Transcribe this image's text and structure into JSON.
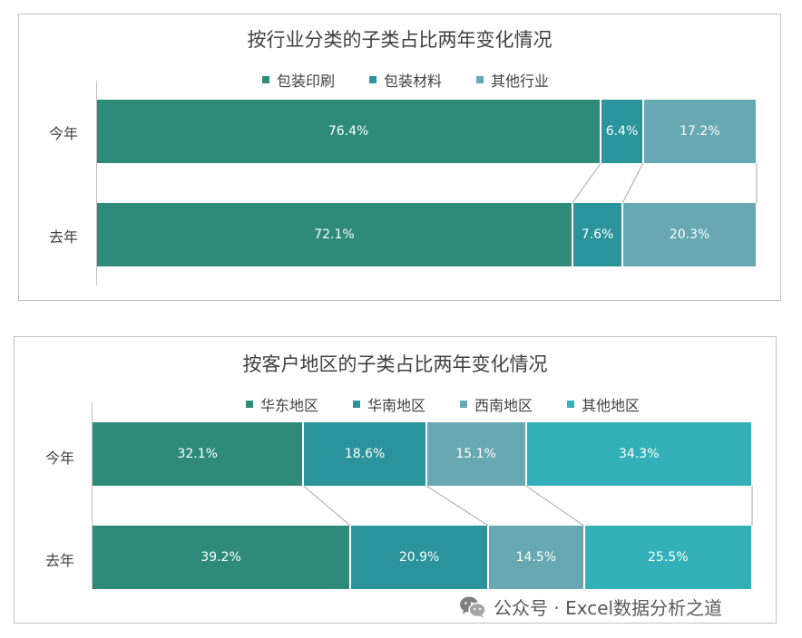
{
  "chart_data": [
    {
      "type": "bar",
      "orientation": "horizontal",
      "stacked": "percent",
      "title": "按行业分类的子类占比两年变化情况",
      "categories": [
        "今年",
        "去年"
      ],
      "series": [
        {
          "name": "包装印刷",
          "values": [
            76.4,
            72.1
          ],
          "labels": [
            "76.4%",
            "72.1%"
          ],
          "color": "#2e8b7a"
        },
        {
          "name": "包装材料",
          "values": [
            6.4,
            7.6
          ],
          "labels": [
            "6.4%",
            "7.6%"
          ],
          "color": "#2a939b"
        },
        {
          "name": "其他行业",
          "values": [
            17.2,
            20.3
          ],
          "labels": [
            "17.2%",
            "20.3%"
          ],
          "color": "#67a8b3"
        }
      ],
      "xlim": [
        0,
        100
      ],
      "legend_position": "top",
      "grid": false
    },
    {
      "type": "bar",
      "orientation": "horizontal",
      "stacked": "percent",
      "title": "按客户地区的子类占比两年变化情况",
      "categories": [
        "今年",
        "去年"
      ],
      "series": [
        {
          "name": "华东地区",
          "values": [
            32.1,
            39.2
          ],
          "labels": [
            "32.1%",
            "39.2%"
          ],
          "color": "#2e8b7a"
        },
        {
          "name": "华南地区",
          "values": [
            18.6,
            20.9
          ],
          "labels": [
            "18.6%",
            "20.9%"
          ],
          "color": "#2a939b"
        },
        {
          "name": "西南地区",
          "values": [
            15.1,
            14.5
          ],
          "labels": [
            "15.1%",
            "14.5%"
          ],
          "color": "#67a8b3"
        },
        {
          "name": "其他地区",
          "values": [
            34.3,
            25.5
          ],
          "labels": [
            "34.3%",
            "25.5%"
          ],
          "color": "#34b1b8"
        }
      ],
      "xlim": [
        0,
        100
      ],
      "legend_position": "top",
      "grid": false
    }
  ],
  "watermark": {
    "icon": "wechat-icon",
    "text": "公众号 · Excel数据分析之道"
  }
}
